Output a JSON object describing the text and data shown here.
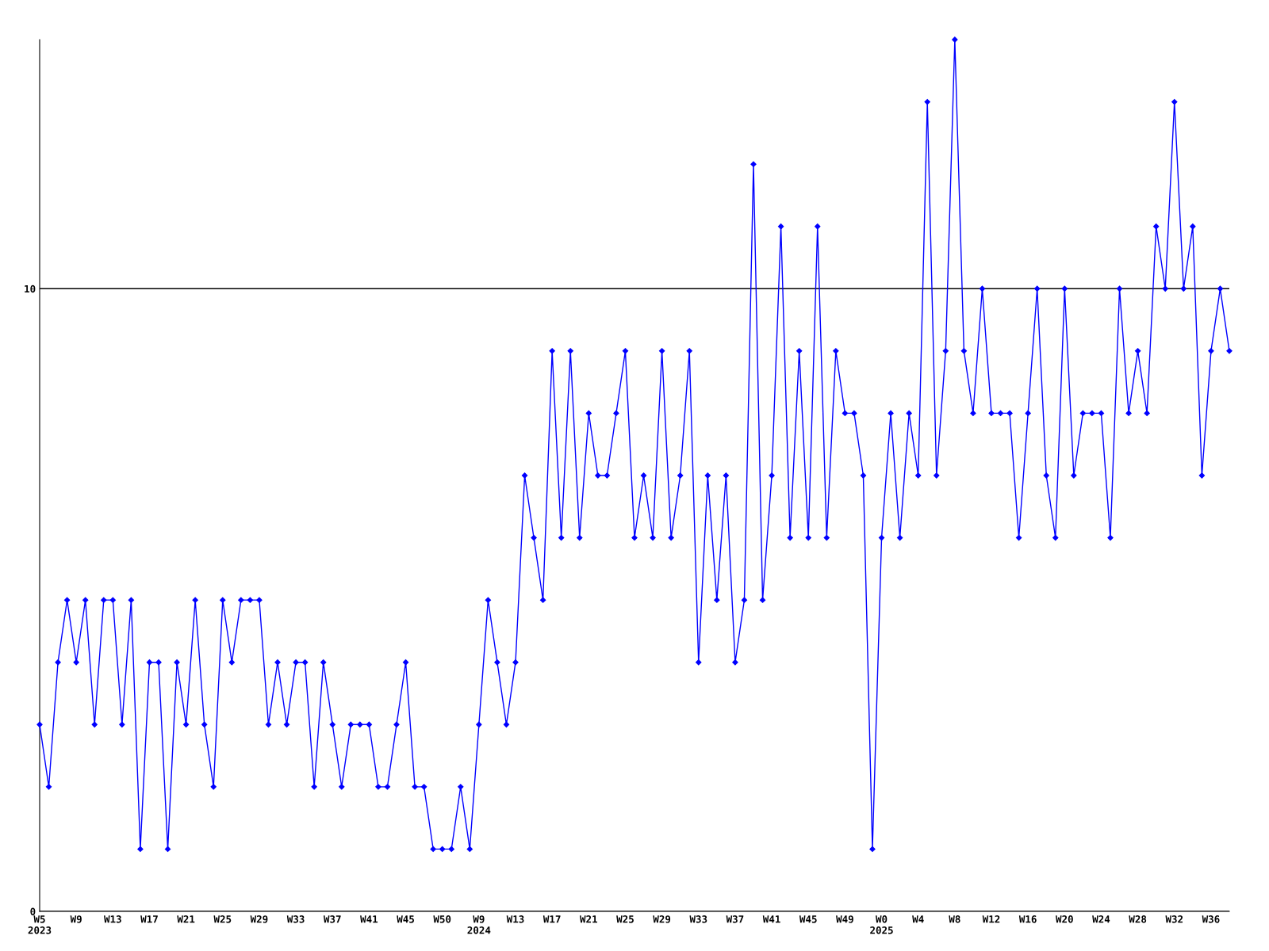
{
  "chart_data": {
    "type": "line",
    "categories": [
      "W5\n2023",
      null,
      null,
      null,
      "W9",
      null,
      null,
      null,
      "W13",
      null,
      null,
      null,
      "W17",
      null,
      null,
      null,
      "W21",
      null,
      null,
      null,
      "W25",
      null,
      null,
      null,
      "W29",
      null,
      null,
      null,
      "W33",
      null,
      null,
      null,
      "W37",
      null,
      null,
      null,
      "W41",
      null,
      null,
      null,
      "W45",
      null,
      null,
      null,
      "W50",
      null,
      null,
      null,
      "W9\n2024",
      null,
      null,
      null,
      "W13",
      null,
      null,
      null,
      "W17",
      null,
      null,
      null,
      "W21",
      null,
      null,
      null,
      "W25",
      null,
      null,
      null,
      "W29",
      null,
      null,
      null,
      "W33",
      null,
      null,
      null,
      "W37",
      null,
      null,
      null,
      "W41",
      null,
      null,
      null,
      "W45",
      null,
      null,
      null,
      "W49",
      null,
      null,
      null,
      "W0\n2025",
      null,
      null,
      null,
      "W4",
      null,
      null,
      null,
      "W8",
      null,
      null,
      null,
      "W12",
      null,
      null,
      null,
      "W16",
      null,
      null,
      null,
      "W20",
      null,
      null,
      null,
      "W24",
      null,
      null,
      null,
      "W28",
      null,
      null,
      null,
      "W32",
      null,
      null,
      null,
      "W36",
      null,
      null
    ],
    "series": [
      {
        "color": "#0000ff",
        "values": [
          3,
          2,
          4,
          5,
          4,
          5,
          3,
          5,
          5,
          3,
          5,
          1,
          4,
          4,
          1,
          4,
          3,
          5,
          3,
          2,
          5,
          4,
          5,
          5,
          5,
          3,
          4,
          3,
          4,
          4,
          2,
          4,
          3,
          2,
          3,
          3,
          3,
          2,
          2,
          3,
          4,
          2,
          2,
          1,
          1,
          1,
          2,
          1,
          3,
          5,
          4,
          3,
          4,
          7,
          6,
          5,
          9,
          6,
          9,
          6,
          8,
          7,
          7,
          8,
          9,
          6,
          7,
          6,
          9,
          6,
          7,
          9,
          4,
          7,
          5,
          7,
          4,
          5,
          12,
          5,
          7,
          11,
          6,
          9,
          6,
          11,
          6,
          9,
          8,
          8,
          7,
          1,
          6,
          8,
          6,
          8,
          7,
          13,
          7,
          9,
          14,
          9,
          8,
          10,
          8,
          8,
          8,
          6,
          8,
          10,
          7,
          6,
          10,
          7,
          8,
          8,
          8,
          6,
          10,
          8,
          9,
          8,
          11,
          10,
          13,
          10,
          11,
          7,
          9,
          10,
          9
        ]
      }
    ],
    "ylim": [
      0,
      14
    ],
    "yticks": [
      0,
      10
    ],
    "grid": "y",
    "marker": "diamond",
    "line_style": "solid"
  }
}
